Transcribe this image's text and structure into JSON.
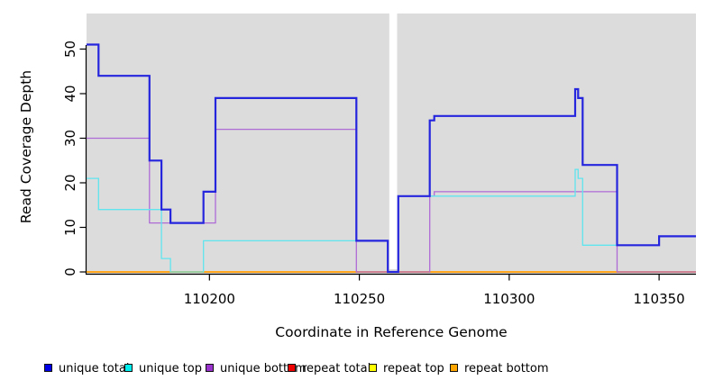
{
  "chart_data": {
    "type": "line",
    "subtype": "step-coverage-plot",
    "title": "",
    "xlabel": "Coordinate in Reference Genome",
    "ylabel": "Read Coverage Depth",
    "plot_bg_color": "#DCDCDC",
    "axis_color": "#000000",
    "grid": "off",
    "legend_position": "bottom-horizontal",
    "xlim": [
      110159,
      110362.3
    ],
    "ylim": [
      0,
      58
    ],
    "gap_region": {
      "start": 110260,
      "end": 110262.6,
      "color": "#FFFFFF"
    },
    "x_ticks": [
      {
        "value": 110200,
        "label": "110200"
      },
      {
        "value": 110250,
        "label": "110250"
      },
      {
        "value": 110300,
        "label": "110300"
      },
      {
        "value": 110350,
        "label": "110350"
      }
    ],
    "y_ticks": [
      {
        "value": 0,
        "label": "0"
      },
      {
        "value": 10,
        "label": "10"
      },
      {
        "value": 20,
        "label": "20"
      },
      {
        "value": 30,
        "label": "30"
      },
      {
        "value": 40,
        "label": "40"
      },
      {
        "value": 50,
        "label": "50"
      }
    ],
    "series_draw_order": [
      {
        "name": "repeat total",
        "color": "#EE0000",
        "line_width": 1.3,
        "breakpoints": [
          [
            110159,
            0
          ]
        ],
        "end": 110362.3
      },
      {
        "name": "repeat top",
        "color": "#FFFF00",
        "line_width": 1.3,
        "breakpoints": [
          [
            110159,
            0
          ]
        ],
        "end": 110362.3
      },
      {
        "name": "repeat bottom",
        "color": "#FFA51E",
        "line_width": 2.0,
        "breakpoints": [
          [
            110159,
            0
          ]
        ],
        "end": 110362.3
      },
      {
        "name": "unique bottom",
        "color": "#AE6BD6",
        "line_width": 1.3,
        "breakpoints": [
          [
            110159,
            30
          ],
          [
            110180,
            11
          ],
          [
            110202,
            32
          ],
          [
            110249,
            0
          ],
          [
            110273.5,
            17
          ],
          [
            110275,
            18
          ],
          [
            110336,
            0
          ]
        ],
        "end": 110362.3
      },
      {
        "name": "unique top",
        "color": "#5FE5EE",
        "line_width": 1.3,
        "breakpoints": [
          [
            110159,
            21
          ],
          [
            110163,
            14
          ],
          [
            110184,
            3
          ],
          [
            110187,
            0
          ],
          [
            110198,
            7
          ],
          [
            110259.5,
            0
          ],
          [
            110263,
            17
          ],
          [
            110322,
            23
          ],
          [
            110323,
            21
          ],
          [
            110324.5,
            6
          ],
          [
            110350,
            8
          ]
        ],
        "end": 110362.3
      },
      {
        "name": "unique total",
        "color": "#2525DE",
        "line_width": 2.2,
        "breakpoints": [
          [
            110159,
            51
          ],
          [
            110163,
            44
          ],
          [
            110180,
            25
          ],
          [
            110184,
            14
          ],
          [
            110187,
            11
          ],
          [
            110198,
            18
          ],
          [
            110202,
            39
          ],
          [
            110249,
            7
          ],
          [
            110259.5,
            0
          ],
          [
            110263,
            17
          ],
          [
            110273.5,
            34
          ],
          [
            110275,
            35
          ],
          [
            110322,
            41
          ],
          [
            110323,
            39
          ],
          [
            110324.5,
            24
          ],
          [
            110336,
            6
          ],
          [
            110350,
            8
          ]
        ],
        "end": 110362.3
      }
    ],
    "legend": [
      {
        "label": "unique total",
        "color": "#0000E6"
      },
      {
        "label": "unique top",
        "color": "#00EEEE"
      },
      {
        "label": "unique bottom",
        "color": "#9932CC"
      },
      {
        "label": "repeat total",
        "color": "#EE0000"
      },
      {
        "label": "repeat top",
        "color": "#FFFF00"
      },
      {
        "label": "repeat bottom",
        "color": "#FFA500"
      }
    ]
  }
}
